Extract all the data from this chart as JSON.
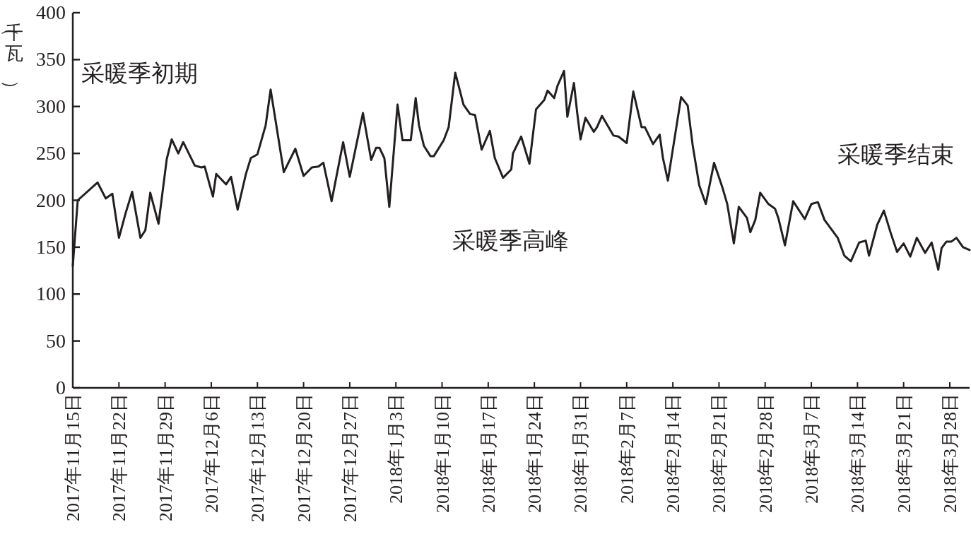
{
  "chart_data": {
    "type": "line",
    "ylabel": "（千瓦）",
    "annotations": [
      "采暖季初期",
      "采暖季高峰",
      "采暖季结束"
    ],
    "xlim": [
      "2017-11-15",
      "2018-03-31"
    ],
    "ylim": [
      0,
      400
    ],
    "yticks": [
      0,
      50,
      100,
      150,
      200,
      250,
      300,
      350,
      400
    ],
    "xticks": [
      {
        "value": "2017-11-15",
        "label": "2017年11月15日"
      },
      {
        "value": "2017-11-22",
        "label": "2017年11月22日"
      },
      {
        "value": "2017-11-29",
        "label": "2017年11月29日"
      },
      {
        "value": "2017-12-06",
        "label": "2017年12月6日"
      },
      {
        "value": "2017-12-13",
        "label": "2017年12月13日"
      },
      {
        "value": "2017-12-20",
        "label": "2017年12月20日"
      },
      {
        "value": "2017-12-27",
        "label": "2017年12月27日"
      },
      {
        "value": "2018-01-03",
        "label": "2018年1月3日"
      },
      {
        "value": "2018-01-10",
        "label": "2018年1月10日"
      },
      {
        "value": "2018-01-17",
        "label": "2018年1月17日"
      },
      {
        "value": "2018-01-24",
        "label": "2018年1月24日"
      },
      {
        "value": "2018-01-31",
        "label": "2018年1月31日"
      },
      {
        "value": "2018-02-07",
        "label": "2018年2月7日"
      },
      {
        "value": "2018-02-14",
        "label": "2018年2月14日"
      },
      {
        "value": "2018-02-21",
        "label": "2018年2月21日"
      },
      {
        "value": "2018-02-28",
        "label": "2018年2月28日"
      },
      {
        "value": "2018-03-07",
        "label": "2018年3月7日"
      },
      {
        "value": "2018-03-14",
        "label": "2018年3月14日"
      },
      {
        "value": "2018-03-21",
        "label": "2018年3月21日"
      },
      {
        "value": "2018-03-28",
        "label": "2018年3月28日"
      }
    ],
    "grid": false,
    "marker": "none",
    "line_style": "solid",
    "series": [
      {
        "color": "#231f20",
        "x": [
          "2017-11-15T00:00",
          "2017-11-15T18:00",
          "2017-11-18T18:00",
          "2017-11-20T00:00",
          "2017-11-21T00:00",
          "2017-11-22T00:00",
          "2017-11-23T00:00",
          "2017-11-24T00:00",
          "2017-11-25T06:00",
          "2017-11-26T00:00",
          "2017-11-26T18:00",
          "2017-11-28T00:00",
          "2017-11-29T06:00",
          "2017-11-30T00:00",
          "2017-12-01T00:00",
          "2017-12-01T18:00",
          "2017-12-03T12:00",
          "2017-12-04T12:00",
          "2017-12-05T00:00",
          "2017-12-06T06:00",
          "2017-12-06T18:00",
          "2017-12-08T06:00",
          "2017-12-09T00:00",
          "2017-12-10T00:00",
          "2017-12-11T06:00",
          "2017-12-12T00:00",
          "2017-12-13T00:00",
          "2017-12-14T06:00",
          "2017-12-15T00:00",
          "2017-12-17T00:00",
          "2017-12-18T18:00",
          "2017-12-20T00:00",
          "2017-12-21T06:00",
          "2017-12-22T06:00",
          "2017-12-23T00:00",
          "2017-12-24T06:00",
          "2017-12-26T00:00",
          "2017-12-27T00:00",
          "2017-12-29T00:00",
          "2017-12-30T06:00",
          "2017-12-31T00:00",
          "2017-12-31T12:00",
          "2018-01-01T06:00",
          "2018-01-02T00:00",
          "2018-01-03T06:00",
          "2018-01-04T00:00",
          "2018-01-05T06:00",
          "2018-01-06T00:00",
          "2018-01-06T12:00",
          "2018-01-07T06:00",
          "2018-01-08T06:00",
          "2018-01-08T18:00",
          "2018-01-10T06:00",
          "2018-01-11T00:00",
          "2018-01-12T00:00",
          "2018-01-13T06:00",
          "2018-01-14T06:00",
          "2018-01-15T00:00",
          "2018-01-16T00:00",
          "2018-01-17T06:00",
          "2018-01-18T00:00",
          "2018-01-19T06:00",
          "2018-01-20T12:00",
          "2018-01-20T18:00",
          "2018-01-22T00:00",
          "2018-01-23T06:00",
          "2018-01-24T06:00",
          "2018-01-25T12:00",
          "2018-01-26T00:00",
          "2018-01-27T00:00",
          "2018-01-27T12:00",
          "2018-01-28T12:00",
          "2018-01-29T00:00",
          "2018-01-30T00:00",
          "2018-01-30T12:00",
          "2018-01-31T00:00",
          "2018-01-31T18:00",
          "2018-02-02T00:00",
          "2018-02-02T12:00",
          "2018-02-03T06:00",
          "2018-02-05T00:00",
          "2018-02-05T18:00",
          "2018-02-07T00:00",
          "2018-02-08T00:00",
          "2018-02-09T06:00",
          "2018-02-09T18:00",
          "2018-02-11T00:00",
          "2018-02-12T00:00",
          "2018-02-12T12:00",
          "2018-02-13T06:00",
          "2018-02-15T06:00",
          "2018-02-16T06:00",
          "2018-02-17T00:00",
          "2018-02-18T00:00",
          "2018-02-19T00:00",
          "2018-02-20T06:00",
          "2018-02-21T12:00",
          "2018-02-22T06:00",
          "2018-02-23T06:00",
          "2018-02-24T00:00",
          "2018-02-25T06:00",
          "2018-02-25T18:00",
          "2018-02-26T12:00",
          "2018-02-27T06:00",
          "2018-02-28T12:00",
          "2018-03-01T12:00",
          "2018-03-02T00:00",
          "2018-03-03T00:00",
          "2018-03-04T06:00",
          "2018-03-06T00:00",
          "2018-03-07T00:00",
          "2018-03-08T00:00",
          "2018-03-09T00:00",
          "2018-03-11T00:00",
          "2018-03-12T00:00",
          "2018-03-13T00:00",
          "2018-03-14T06:00",
          "2018-03-15T06:00",
          "2018-03-15T18:00",
          "2018-03-17T00:00",
          "2018-03-18T00:00",
          "2018-03-19T00:00",
          "2018-03-20T00:00",
          "2018-03-21T00:00",
          "2018-03-22T00:00",
          "2018-03-23T00:00",
          "2018-03-24T06:00",
          "2018-03-25T06:00",
          "2018-03-26T06:00",
          "2018-03-26T18:00",
          "2018-03-27T12:00",
          "2018-03-28T06:00",
          "2018-03-29T00:00",
          "2018-03-30T00:00",
          "2018-03-31T00:00"
        ],
        "values": [
          130,
          200,
          219,
          202,
          207,
          160,
          186,
          209,
          160,
          168,
          208,
          175,
          244,
          265,
          250,
          262,
          237,
          235,
          236,
          204,
          228,
          217,
          225,
          190,
          228,
          245,
          249,
          280,
          318,
          230,
          255,
          226,
          235,
          236,
          240,
          199,
          262,
          225,
          293,
          243,
          256,
          256,
          245,
          193,
          302,
          264,
          264,
          309,
          280,
          258,
          247,
          247,
          264,
          278,
          336,
          302,
          292,
          291,
          254,
          274,
          245,
          224,
          233,
          250,
          268,
          239,
          297,
          307,
          317,
          309,
          322,
          338,
          289,
          325,
          293,
          265,
          288,
          273,
          278,
          290,
          269,
          268,
          261,
          316,
          278,
          278,
          260,
          270,
          245,
          221,
          310,
          301,
          259,
          216,
          196,
          240,
          214,
          196,
          154,
          193,
          181,
          166,
          179,
          208,
          196,
          191,
          181,
          152,
          199,
          180,
          196,
          198,
          179,
          160,
          141,
          135,
          155,
          157,
          141,
          174,
          189,
          166,
          145,
          154,
          140,
          160,
          144,
          155,
          126,
          149,
          156,
          156,
          160,
          150,
          147
        ]
      }
    ]
  }
}
